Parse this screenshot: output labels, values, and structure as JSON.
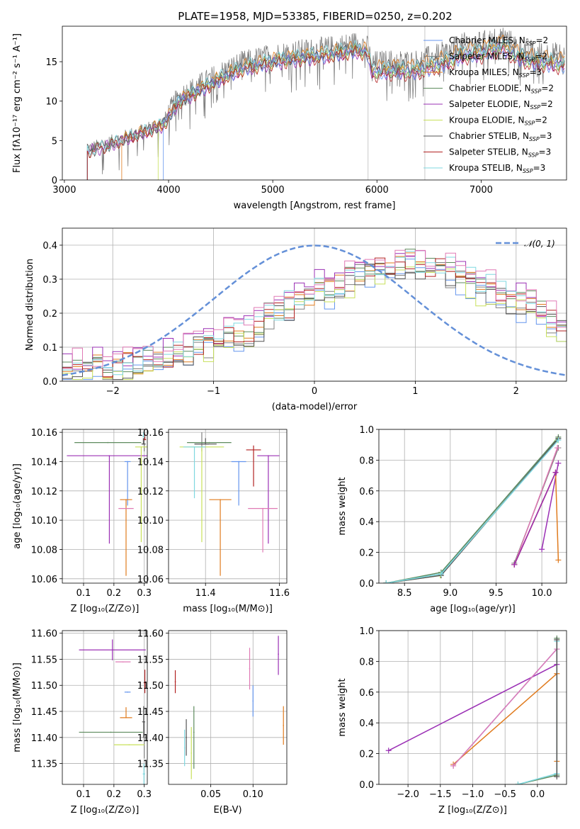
{
  "colors": {
    "Chabrier MILES": "#6495ed",
    "Salpeter MILES": "#808080",
    "Kroupa MILES": "#e07b1e",
    "Chabrier ELODIE": "#5e8b5e",
    "Salpeter ELODIE": "#9b30b5",
    "Kroupa ELODIE": "#c8e05a",
    "Chabrier STELIB": "#555555",
    "Salpeter STELIB": "#b22222",
    "Kroupa STELIB": "#7fd8e0",
    "pink": "#e07ab5"
  },
  "chart_data": [
    {
      "id": "spectrum",
      "type": "line",
      "title": "PLATE=1958, MJD=53385, FIBERID=0250, z=0.202",
      "xlabel": "wavelength [Angstrom, rest frame]",
      "ylabel": "Flux [fλ10⁻¹⁷ erg cm⁻² s⁻¹ A⁻¹]",
      "xlim": [
        2980,
        7820
      ],
      "ylim": [
        0,
        19.5
      ],
      "xticks": [
        3000,
        4000,
        5000,
        6000,
        7000
      ],
      "yticks": [
        0,
        5,
        10,
        15
      ],
      "grid": false,
      "legend_position": "right",
      "legend": [
        {
          "series": "Chabrier MILES",
          "label": "Chabrier MILES, N",
          "sub": "SSP",
          "tail": "=2"
        },
        {
          "series": "Salpeter MILES",
          "label": "Salpeter MILES, N",
          "sub": "SSP",
          "tail": "=2"
        },
        {
          "series": "Kroupa MILES",
          "label": "Kroupa MILES, N",
          "sub": "SSP",
          "tail": "=3"
        },
        {
          "series": "Chabrier ELODIE",
          "label": "Chabrier ELODIE, N",
          "sub": "SSP",
          "tail": "=2"
        },
        {
          "series": "Salpeter ELODIE",
          "label": "Salpeter ELODIE, N",
          "sub": "SSP",
          "tail": "=2"
        },
        {
          "series": "Kroupa ELODIE",
          "label": "Kroupa ELODIE, N",
          "sub": "SSP",
          "tail": "=2"
        },
        {
          "series": "Chabrier STELIB",
          "label": "Chabrier STELIB, N",
          "sub": "SSP",
          "tail": "=3"
        },
        {
          "series": "Salpeter STELIB",
          "label": "Salpeter STELIB, N",
          "sub": "SSP",
          "tail": "=3"
        },
        {
          "series": "Kroupa STELIB",
          "label": "Kroupa STELIB, N",
          "sub": "SSP",
          "tail": "=3"
        }
      ],
      "continuum_shape": {
        "x": [
          3220,
          3400,
          3600,
          3800,
          3950,
          4100,
          4300,
          4500,
          4700,
          5000,
          5200,
          5500,
          5800,
          5900,
          5950,
          6150,
          6350,
          6600,
          6850,
          7000,
          7200,
          7350,
          7500,
          7800
        ],
        "y": [
          3.8,
          4.5,
          5.5,
          6.5,
          7.3,
          10.5,
          12.0,
          13.5,
          14.8,
          15.8,
          16.2,
          16.6,
          17.3,
          17.1,
          14.8,
          15.0,
          14.9,
          15.8,
          17.2,
          17.3,
          18.2,
          16.8,
          16.2,
          15.8
        ]
      },
      "spectra_notes": "observed spectrum in grey with noise; model fits overlaid"
    },
    {
      "id": "residuals",
      "type": "bar",
      "xlabel": "(data-model)/error",
      "ylabel": "Normed distribution",
      "xlim": [
        -2.5,
        2.5
      ],
      "ylim": [
        0,
        0.45
      ],
      "xticks": [
        -2,
        -1,
        0,
        1,
        2
      ],
      "yticks": [
        0.0,
        0.1,
        0.2,
        0.3,
        0.4
      ],
      "grid": true,
      "legend": "𝒩(0, 1)",
      "legend_position": "top-right",
      "bin_edges_start": -2.5,
      "bin_width": 0.1,
      "hist_base": [
        0.04,
        0.04,
        0.05,
        0.05,
        0.04,
        0.04,
        0.05,
        0.05,
        0.06,
        0.06,
        0.07,
        0.08,
        0.09,
        0.11,
        0.11,
        0.12,
        0.13,
        0.14,
        0.15,
        0.16,
        0.19,
        0.2,
        0.22,
        0.24,
        0.25,
        0.27,
        0.27,
        0.28,
        0.3,
        0.32,
        0.33,
        0.33,
        0.34,
        0.34,
        0.35,
        0.34,
        0.33,
        0.33,
        0.32,
        0.31,
        0.3,
        0.28,
        0.27,
        0.25,
        0.24,
        0.23,
        0.22,
        0.2,
        0.18,
        0.16
      ]
    },
    {
      "id": "age-vs-Z",
      "type": "scatter",
      "xlabel": "Z [log₁₀(Z/Z⊙)]",
      "ylabel": "age  [log₁₀(age/yr)]",
      "xlim": [
        0.03,
        0.31
      ],
      "ylim": [
        10.057,
        10.162
      ],
      "xticks": [
        0.1,
        0.2,
        0.3
      ],
      "yticks": [
        10.06,
        10.08,
        10.1,
        10.12,
        10.14,
        10.16
      ],
      "grid": true,
      "points": [
        {
          "series": "Chabrier MILES",
          "x": 0.245,
          "xerr": 0.01,
          "y": 10.14,
          "yerr": [
            0.03,
            0.0
          ]
        },
        {
          "series": "Salpeter MILES",
          "x": 0.3,
          "xerr": 0.005,
          "y": 10.152,
          "yerr": [
            0.005,
            0.008
          ]
        },
        {
          "series": "Kroupa MILES",
          "x": 0.24,
          "xerr": 0.02,
          "y": 10.114,
          "yerr": [
            0.052,
            0.0
          ]
        },
        {
          "series": "Chabrier ELODIE",
          "x": 0.18,
          "xerr": 0.11,
          "y": 10.153,
          "yerr": [
            0.0,
            0.0
          ]
        },
        {
          "series": "Salpeter ELODIE",
          "x": 0.185,
          "xerr": 0.14,
          "y": 10.144,
          "yerr": [
            0.06,
            0.0
          ]
        },
        {
          "series": "Kroupa ELODIE",
          "x": 0.29,
          "xerr": 0.02,
          "y": 10.15,
          "yerr": [
            0.065,
            0.0
          ]
        },
        {
          "series": "Chabrier STELIB",
          "x": 0.297,
          "xerr": 0.006,
          "y": 10.152,
          "yerr": [
            0.0,
            0.004
          ]
        },
        {
          "series": "Salpeter STELIB",
          "x": 0.302,
          "xerr": 0.004,
          "y": 10.155,
          "yerr": [
            0.0,
            0.004
          ]
        },
        {
          "series": "Kroupa STELIB",
          "x": 0.298,
          "xerr": 0.004,
          "y": 10.157,
          "yerr": [
            0.0,
            0.003
          ]
        },
        {
          "series": "pink",
          "x": 0.24,
          "xerr": 0.025,
          "y": 10.108,
          "yerr": [
            0.0,
            0.0
          ]
        }
      ]
    },
    {
      "id": "age-vs-mass",
      "type": "scatter",
      "xlabel": "mass [log₁₀(M/M⊙)]",
      "ylabel": "",
      "xlim": [
        11.3,
        11.62
      ],
      "ylim": [
        10.057,
        10.162
      ],
      "xticks": [
        11.4,
        11.6
      ],
      "yticks": [
        10.06,
        10.08,
        10.1,
        10.12,
        10.14,
        10.16
      ],
      "grid": true,
      "points": [
        {
          "series": "Chabrier MILES",
          "x": 11.49,
          "xerr": 0.02,
          "y": 10.14,
          "yerr": [
            0.03,
            0.0
          ]
        },
        {
          "series": "Salpeter MILES",
          "x": 11.39,
          "xerr": 0.02,
          "y": 10.152,
          "yerr": [
            0.005,
            0.008
          ]
        },
        {
          "series": "Kroupa MILES",
          "x": 11.44,
          "xerr": 0.03,
          "y": 10.114,
          "yerr": [
            0.052,
            0.0
          ]
        },
        {
          "series": "Chabrier ELODIE",
          "x": 11.41,
          "xerr": 0.06,
          "y": 10.153,
          "yerr": [
            0.0,
            0.0
          ]
        },
        {
          "series": "Salpeter ELODIE",
          "x": 11.57,
          "xerr": 0.03,
          "y": 10.144,
          "yerr": [
            0.06,
            0.0
          ]
        },
        {
          "series": "Kroupa ELODIE",
          "x": 11.39,
          "xerr": 0.06,
          "y": 10.15,
          "yerr": [
            0.065,
            0.0
          ]
        },
        {
          "series": "Chabrier STELIB",
          "x": 11.4,
          "xerr": 0.03,
          "y": 10.152,
          "yerr": [
            0.0,
            0.004
          ]
        },
        {
          "series": "Salpeter STELIB",
          "x": 11.53,
          "xerr": 0.02,
          "y": 10.148,
          "yerr": [
            0.025,
            0.003
          ]
        },
        {
          "series": "Kroupa STELIB",
          "x": 11.37,
          "xerr": 0.03,
          "y": 10.15,
          "yerr": [
            0.035,
            0.0
          ]
        },
        {
          "series": "pink",
          "x": 11.555,
          "xerr": 0.04,
          "y": 10.108,
          "yerr": [
            0.03,
            0.0
          ]
        }
      ]
    },
    {
      "id": "massweight-vs-age",
      "type": "line",
      "xlabel": "age  [log₁₀(age/yr)]",
      "ylabel": "mass weight",
      "xlim": [
        8.22,
        10.27
      ],
      "ylim": [
        0.0,
        1.0
      ],
      "xticks": [
        8.5,
        9.0,
        9.5,
        10.0
      ],
      "yticks": [
        0.0,
        0.2,
        0.4,
        0.6,
        0.8,
        1.0
      ],
      "grid": true,
      "series": [
        {
          "series": "Chabrier MILES",
          "x": [
            8.3,
            8.9,
            10.18
          ],
          "y": [
            0.0,
            0.06,
            0.94
          ]
        },
        {
          "series": "Chabrier ELODIE",
          "x": [
            8.3,
            8.9,
            10.18
          ],
          "y": [
            0.0,
            0.07,
            0.95
          ]
        },
        {
          "series": "Kroupa ELODIE",
          "x": [
            8.3,
            8.89,
            10.17
          ],
          "y": [
            0.0,
            0.05,
            0.93
          ]
        },
        {
          "series": "Chabrier STELIB",
          "x": [
            8.3,
            8.9,
            10.18
          ],
          "y": [
            0.0,
            0.05,
            0.94
          ]
        },
        {
          "series": "Kroupa STELIB",
          "x": [
            8.3,
            8.9,
            10.18
          ],
          "y": [
            0.0,
            0.06,
            0.93
          ]
        },
        {
          "series": "Salpeter ELODIE",
          "x": [
            10.0,
            10.18
          ],
          "y": [
            0.22,
            0.78
          ]
        },
        {
          "series": "Salpeter MILES",
          "x": [
            9.7,
            10.18
          ],
          "y": [
            0.13,
            0.88
          ]
        },
        {
          "series": "pink",
          "x": [
            9.7,
            10.17
          ],
          "y": [
            0.12,
            0.88
          ]
        },
        {
          "series": "Kroupa MILES",
          "x": [
            9.7,
            10.15,
            10.18
          ],
          "y": [
            0.12,
            0.72,
            0.15
          ]
        },
        {
          "series": "Salpeter STELIB",
          "x": [
            9.7,
            10.15
          ],
          "y": [
            0.12,
            0.72
          ]
        },
        {
          "series": "Salpeter ELODIE",
          "x": [
            9.7,
            10.15
          ],
          "y": [
            0.12,
            0.72
          ]
        }
      ]
    },
    {
      "id": "mass-vs-Z",
      "type": "scatter",
      "xlabel": "Z [log₁₀(Z/Z⊙)]",
      "ylabel": "mass [log₁₀(M/M⊙)]",
      "xlim": [
        0.03,
        0.31
      ],
      "ylim": [
        11.31,
        11.605
      ],
      "xticks": [
        0.1,
        0.2,
        0.3
      ],
      "yticks": [
        11.35,
        11.4,
        11.45,
        11.5,
        11.55,
        11.6
      ],
      "grid": true,
      "points": [
        {
          "series": "Chabrier MILES",
          "x": 0.245,
          "xerr": 0.01,
          "y": 11.487,
          "yerr": [
            0.0,
            0.0
          ]
        },
        {
          "series": "Salpeter MILES",
          "x": 0.3,
          "xerr": 0.005,
          "y": 11.4,
          "yerr": [
            0.04,
            0.03
          ]
        },
        {
          "series": "Kroupa MILES",
          "x": 0.24,
          "xerr": 0.02,
          "y": 11.438,
          "yerr": [
            0.0,
            0.02
          ]
        },
        {
          "series": "Chabrier ELODIE",
          "x": 0.19,
          "xerr": 0.105,
          "y": 11.41,
          "yerr": [
            0.0,
            0.0
          ]
        },
        {
          "series": "Salpeter ELODIE",
          "x": 0.195,
          "xerr": 0.11,
          "y": 11.568,
          "yerr": [
            0.02,
            0.02
          ]
        },
        {
          "series": "Kroupa ELODIE",
          "x": 0.25,
          "xerr": 0.05,
          "y": 11.386,
          "yerr": [
            0.0,
            0.0
          ]
        },
        {
          "series": "Chabrier STELIB",
          "x": 0.298,
          "xerr": 0.005,
          "y": 11.43,
          "yerr": [
            0.03,
            0.03
          ]
        },
        {
          "series": "Salpeter STELIB",
          "x": 0.302,
          "xerr": 0.004,
          "y": 11.505,
          "yerr": [
            0.02,
            0.025
          ]
        },
        {
          "series": "Kroupa STELIB",
          "x": 0.299,
          "xerr": 0.004,
          "y": 11.33,
          "yerr": [
            0.02,
            0.02
          ]
        },
        {
          "series": "pink",
          "x": 0.23,
          "xerr": 0.025,
          "y": 11.545,
          "yerr": [
            0.0,
            0.0
          ]
        }
      ]
    },
    {
      "id": "mass-vs-ebv",
      "type": "scatter",
      "xlabel": "E(B-V)",
      "ylabel": "",
      "xlim": [
        0.0,
        0.14
      ],
      "ylim": [
        11.31,
        11.605
      ],
      "xticks": [
        0.05,
        0.1
      ],
      "yticks": [
        11.35,
        11.4,
        11.45,
        11.5,
        11.55,
        11.6
      ],
      "grid": true,
      "points": [
        {
          "series": "Chabrier MILES",
          "x": 0.1,
          "xerr": 0.0,
          "y": 11.47,
          "yerr": [
            0.03,
            0.03
          ]
        },
        {
          "series": "Kroupa MILES",
          "x": 0.136,
          "xerr": 0.0,
          "y": 11.423,
          "yerr": [
            0.037,
            0.037
          ]
        },
        {
          "series": "Chabrier ELODIE",
          "x": 0.03,
          "xerr": 0.0,
          "y": 11.41,
          "yerr": [
            0.07,
            0.05
          ]
        },
        {
          "series": "Salpeter ELODIE",
          "x": 0.13,
          "xerr": 0.0,
          "y": 11.56,
          "yerr": [
            0.04,
            0.035
          ]
        },
        {
          "series": "Kroupa ELODIE",
          "x": 0.027,
          "xerr": 0.0,
          "y": 11.37,
          "yerr": [
            0.05,
            0.05
          ]
        },
        {
          "series": "Chabrier STELIB",
          "x": 0.021,
          "xerr": 0.0,
          "y": 11.4,
          "yerr": [
            0.035,
            0.035
          ]
        },
        {
          "series": "Salpeter STELIB",
          "x": 0.008,
          "xerr": 0.0,
          "y": 11.507,
          "yerr": [
            0.022,
            0.022
          ]
        },
        {
          "series": "Kroupa STELIB",
          "x": 0.019,
          "xerr": 0.0,
          "y": 11.38,
          "yerr": [
            0.035,
            0.035
          ]
        },
        {
          "series": "pink",
          "x": 0.096,
          "xerr": 0.0,
          "y": 11.532,
          "yerr": [
            0.04,
            0.04
          ]
        }
      ]
    },
    {
      "id": "massweight-vs-Z",
      "type": "line",
      "xlabel": "Z [log₁₀(Z/Z⊙)]",
      "ylabel": "mass weight",
      "xlim": [
        -2.45,
        0.45
      ],
      "ylim": [
        0.0,
        1.0
      ],
      "xticks": [
        -2.0,
        -1.5,
        -1.0,
        -0.5,
        0.0
      ],
      "yticks": [
        0.0,
        0.2,
        0.4,
        0.6,
        0.8,
        1.0
      ],
      "grid": true,
      "series": [
        {
          "series": "Salpeter ELODIE",
          "x": [
            -2.3,
            0.3
          ],
          "y": [
            0.22,
            0.78
          ]
        },
        {
          "series": "Kroupa MILES",
          "x": [
            -1.3,
            0.3,
            0.3
          ],
          "y": [
            0.13,
            0.72,
            0.15
          ]
        },
        {
          "series": "Chabrier MILES",
          "x": [
            -1.3,
            0.3
          ],
          "y": [
            0.12,
            0.88
          ]
        },
        {
          "series": "pink",
          "x": [
            -1.3,
            0.3
          ],
          "y": [
            0.12,
            0.88
          ]
        },
        {
          "series": "Chabrier ELODIE",
          "x": [
            -0.3,
            0.3,
            0.3
          ],
          "y": [
            0.0,
            0.06,
            0.95
          ]
        },
        {
          "series": "Kroupa STELIB",
          "x": [
            -0.3,
            0.3,
            0.3
          ],
          "y": [
            0.0,
            0.07,
            0.93
          ]
        },
        {
          "series": "Chabrier STELIB",
          "x": [
            0.3,
            0.3
          ],
          "y": [
            0.05,
            0.94
          ]
        }
      ]
    }
  ]
}
